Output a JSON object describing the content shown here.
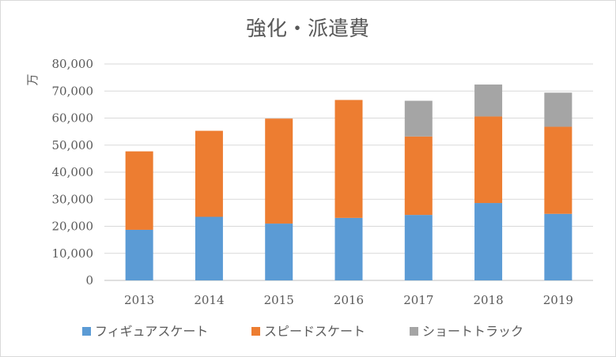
{
  "chart_data": {
    "type": "bar",
    "stacked": true,
    "title": "強化・派遣費",
    "ylabel": "万",
    "xlabel": "",
    "categories": [
      "2013",
      "2014",
      "2015",
      "2016",
      "2017",
      "2018",
      "2019"
    ],
    "series": [
      {
        "name": "フィギュアスケート",
        "color": "#5b9bd5",
        "values": [
          18700,
          23500,
          21000,
          23100,
          24200,
          28600,
          24600
        ]
      },
      {
        "name": "スピードスケート",
        "color": "#ed7d31",
        "values": [
          29000,
          31800,
          38800,
          43600,
          29000,
          32000,
          32200
        ]
      },
      {
        "name": "ショートトラック",
        "color": "#a5a5a5",
        "values": [
          0,
          0,
          0,
          0,
          13200,
          11800,
          12600
        ]
      }
    ],
    "ylim": [
      0,
      80000
    ],
    "yticks": [
      "0",
      "10,000",
      "20,000",
      "30,000",
      "40,000",
      "50,000",
      "60,000",
      "70,000",
      "80,000"
    ],
    "grid": true,
    "legend_position": "bottom"
  }
}
